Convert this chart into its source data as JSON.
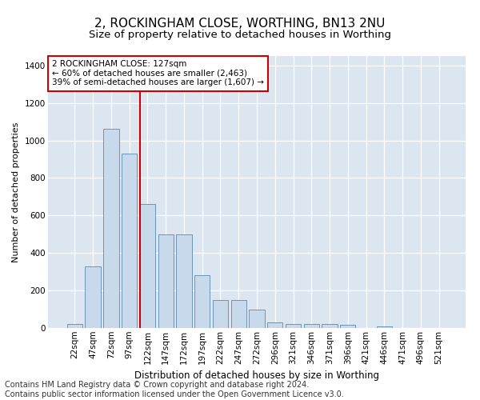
{
  "title": "2, ROCKINGHAM CLOSE, WORTHING, BN13 2NU",
  "subtitle": "Size of property relative to detached houses in Worthing",
  "xlabel": "Distribution of detached houses by size in Worthing",
  "ylabel": "Number of detached properties",
  "categories": [
    "22sqm",
    "47sqm",
    "72sqm",
    "97sqm",
    "122sqm",
    "147sqm",
    "172sqm",
    "197sqm",
    "222sqm",
    "247sqm",
    "272sqm",
    "296sqm",
    "321sqm",
    "346sqm",
    "371sqm",
    "396sqm",
    "421sqm",
    "446sqm",
    "471sqm",
    "496sqm",
    "521sqm"
  ],
  "values": [
    20,
    330,
    1060,
    930,
    660,
    500,
    500,
    280,
    150,
    150,
    100,
    30,
    20,
    20,
    20,
    15,
    0,
    10,
    0,
    0,
    0
  ],
  "bar_color": "#c8d9eb",
  "bar_edge_color": "#5a8ab0",
  "vline_color": "#cc0000",
  "vline_pos": 4.0,
  "annotation_line1": "2 ROCKINGHAM CLOSE: 127sqm",
  "annotation_line2": "← 60% of detached houses are smaller (2,463)",
  "annotation_line3": "39% of semi-detached houses are larger (1,607) →",
  "annotation_box_color": "#ffffff",
  "annotation_box_edge": "#cc0000",
  "footer_text": "Contains HM Land Registry data © Crown copyright and database right 2024.\nContains public sector information licensed under the Open Government Licence v3.0.",
  "background_color": "#e8eef4",
  "plot_bg_color": "#dce6f0",
  "ylim": [
    0,
    1450
  ],
  "yticks": [
    0,
    200,
    400,
    600,
    800,
    1000,
    1200,
    1400
  ],
  "title_fontsize": 11,
  "subtitle_fontsize": 9.5,
  "axis_label_fontsize": 8,
  "tick_fontsize": 7.5,
  "footer_fontsize": 7
}
